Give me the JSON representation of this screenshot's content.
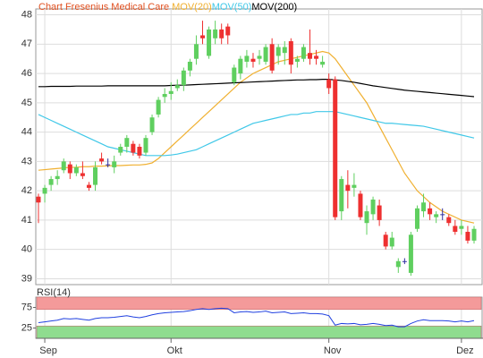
{
  "chart_data": [
    {
      "type": "candlestick",
      "title": "Chart Fresenius Medical Care",
      "title_color": "#e05020",
      "categories": [
        null,
        "Sep",
        null,
        null,
        null,
        null,
        null,
        null,
        null,
        null,
        null,
        null,
        null,
        null,
        null,
        null,
        null,
        null,
        null,
        null,
        null,
        "Okt",
        null,
        null,
        null,
        null,
        null,
        null,
        null,
        null,
        null,
        null,
        null,
        null,
        null,
        null,
        null,
        null,
        null,
        null,
        null,
        null,
        null,
        null,
        null,
        null,
        "Nov",
        null,
        null,
        null,
        null,
        null,
        null,
        null,
        null,
        null,
        null,
        null,
        null,
        null,
        null,
        null,
        null,
        null,
        null,
        null,
        null,
        "Dez",
        null,
        null
      ],
      "open": [
        41.8,
        41.9,
        42.2,
        42.4,
        42.7,
        42.9,
        42.6,
        42.6,
        42.2,
        42.2,
        43.1,
        42.9,
        42.8,
        43.3,
        43.5,
        43.6,
        43.5,
        43.3,
        44.0,
        44.6,
        45.2,
        45.3,
        45.5,
        45.6,
        46.1,
        46.5,
        47.3,
        46.6,
        47.2,
        47.5,
        47.6,
        45.7,
        46.0,
        46.4,
        46.5,
        46.5,
        46.4,
        47.0,
        46.6,
        46.7,
        47.1,
        46.4,
        46.5,
        46.7,
        46.6,
        46.3,
        45.8,
        45.8,
        41.3,
        42.2,
        42.1,
        41.9,
        40.9,
        41.2,
        41.5,
        40.5,
        40.1,
        39.4,
        39.6,
        39.2,
        40.7,
        41.3,
        41.4,
        41.1,
        41.2,
        41.1,
        40.8,
        40.7,
        40.6,
        40.3
      ],
      "high": [
        41.9,
        42.2,
        42.5,
        42.7,
        43.1,
        43.0,
        42.9,
        43.0,
        42.3,
        43.0,
        43.3,
        43.1,
        43.2,
        43.6,
        43.9,
        43.7,
        43.6,
        43.9,
        44.6,
        45.2,
        45.5,
        45.7,
        45.8,
        46.2,
        46.5,
        47.3,
        47.8,
        47.6,
        47.8,
        47.7,
        47.7,
        46.3,
        46.6,
        46.8,
        46.7,
        46.8,
        47.0,
        47.2,
        47.0,
        47.1,
        47.2,
        46.6,
        47.0,
        47.5,
        46.8,
        46.6,
        46.0,
        45.9,
        42.5,
        42.7,
        42.6,
        42.0,
        41.5,
        41.8,
        41.7,
        40.6,
        40.6,
        39.7,
        39.7,
        40.6,
        41.5,
        41.9,
        41.6,
        41.3,
        41.4,
        41.2,
        41.0,
        41.0,
        40.8,
        40.8
      ],
      "low": [
        40.9,
        41.6,
        42.0,
        42.2,
        42.6,
        42.4,
        42.5,
        42.4,
        42.0,
        42.0,
        42.9,
        42.8,
        42.6,
        43.2,
        43.3,
        43.2,
        43.1,
        43.2,
        43.9,
        44.5,
        45.0,
        45.1,
        45.4,
        45.4,
        45.9,
        46.3,
        47.0,
        46.5,
        47.0,
        47.0,
        47.0,
        45.6,
        45.8,
        46.2,
        46.2,
        46.3,
        46.3,
        46.0,
        46.3,
        46.3,
        46.0,
        46.2,
        46.4,
        46.3,
        46.3,
        46.2,
        45.3,
        41.0,
        41.0,
        41.4,
        41.8,
        41.0,
        40.5,
        41.0,
        40.8,
        40.0,
        40.0,
        39.2,
        39.5,
        39.1,
        40.6,
        41.1,
        41.0,
        40.9,
        41.0,
        40.8,
        40.5,
        40.5,
        40.2,
        40.2
      ],
      "close": [
        41.6,
        42.1,
        42.4,
        42.5,
        43.0,
        42.6,
        42.8,
        42.5,
        42.1,
        42.8,
        43.0,
        42.9,
        43.0,
        43.5,
        43.8,
        43.3,
        43.2,
        43.8,
        44.5,
        45.1,
        45.3,
        45.4,
        45.6,
        46.1,
        46.4,
        47.0,
        47.2,
        47.5,
        47.5,
        47.2,
        47.3,
        46.2,
        46.5,
        46.6,
        46.4,
        46.6,
        46.9,
        46.1,
        46.9,
        46.9,
        46.3,
        46.5,
        46.9,
        46.5,
        46.5,
        46.4,
        45.5,
        41.1,
        42.4,
        42.0,
        42.2,
        41.1,
        41.3,
        41.7,
        41.0,
        40.1,
        40.4,
        39.6,
        39.6,
        40.5,
        41.4,
        41.6,
        41.2,
        41.2,
        41.2,
        40.9,
        40.6,
        40.8,
        40.3,
        40.7
      ],
      "up_color": "#5fcf5f",
      "down_color": "#ee3030",
      "doji_color": "#3030a0",
      "series": [
        {
          "name": "MOV(20)",
          "color": "#f0b030",
          "values": [
            42.7,
            42.72,
            42.74,
            42.76,
            42.78,
            42.8,
            42.8,
            42.82,
            42.82,
            42.84,
            42.84,
            42.85,
            42.86,
            42.86,
            42.87,
            42.88,
            42.88,
            42.9,
            42.95,
            43.1,
            43.3,
            43.5,
            43.7,
            43.9,
            44.1,
            44.3,
            44.5,
            44.7,
            44.9,
            45.1,
            45.3,
            45.5,
            45.7,
            45.85,
            46.0,
            46.1,
            46.2,
            46.3,
            46.4,
            46.45,
            46.5,
            46.55,
            46.6,
            46.65,
            46.7,
            46.75,
            46.7,
            46.5,
            46.2,
            45.9,
            45.6,
            45.3,
            45.0,
            44.6,
            44.2,
            43.8,
            43.4,
            43.0,
            42.6,
            42.3,
            42.0,
            41.8,
            41.6,
            41.45,
            41.3,
            41.2,
            41.1,
            41.0,
            40.95,
            40.9
          ]
        },
        {
          "name": "MOV(50)",
          "color": "#40c8e8",
          "values": [
            44.6,
            44.5,
            44.4,
            44.3,
            44.2,
            44.1,
            44.0,
            43.9,
            43.8,
            43.7,
            43.6,
            43.5,
            43.45,
            43.4,
            43.35,
            43.3,
            43.25,
            43.2,
            43.2,
            43.2,
            43.2,
            43.22,
            43.25,
            43.3,
            43.35,
            43.4,
            43.5,
            43.6,
            43.7,
            43.8,
            43.9,
            44.0,
            44.1,
            44.2,
            44.3,
            44.35,
            44.4,
            44.45,
            44.5,
            44.55,
            44.6,
            44.6,
            44.65,
            44.65,
            44.7,
            44.7,
            44.7,
            44.7,
            44.65,
            44.6,
            44.55,
            44.5,
            44.45,
            44.4,
            44.35,
            44.3,
            44.3,
            44.28,
            44.26,
            44.24,
            44.22,
            44.2,
            44.15,
            44.1,
            44.05,
            44.0,
            43.95,
            43.9,
            43.85,
            43.8
          ]
        },
        {
          "name": "MOV(200)",
          "color": "#000000",
          "values": [
            45.55,
            45.55,
            45.56,
            45.56,
            45.56,
            45.56,
            45.57,
            45.57,
            45.57,
            45.57,
            45.57,
            45.58,
            45.58,
            45.58,
            45.58,
            45.58,
            45.58,
            45.58,
            45.58,
            45.58,
            45.58,
            45.59,
            45.6,
            45.6,
            45.61,
            45.62,
            45.63,
            45.64,
            45.65,
            45.66,
            45.67,
            45.68,
            45.69,
            45.7,
            45.71,
            45.72,
            45.73,
            45.74,
            45.75,
            45.76,
            45.77,
            45.78,
            45.78,
            45.79,
            45.79,
            45.8,
            45.8,
            45.78,
            45.76,
            45.73,
            45.7,
            45.66,
            45.62,
            45.58,
            45.55,
            45.52,
            45.49,
            45.46,
            45.43,
            45.41,
            45.39,
            45.37,
            45.35,
            45.33,
            45.31,
            45.29,
            45.27,
            45.25,
            45.23,
            45.21
          ]
        }
      ],
      "ylim": [
        38.8,
        48.2
      ],
      "yticks": [
        39,
        40,
        41,
        42,
        43,
        44,
        45,
        46,
        47,
        48
      ],
      "grid": true
    },
    {
      "type": "line",
      "series": [
        {
          "name": "RSI(14)",
          "color": "#2040e0",
          "values": [
            38,
            40,
            42,
            44,
            48,
            47,
            48,
            46,
            44,
            48,
            50,
            50,
            51,
            53,
            55,
            52,
            50,
            53,
            57,
            60,
            62,
            63,
            64,
            65,
            67,
            70,
            72,
            70,
            72,
            73,
            72,
            62,
            64,
            65,
            63,
            64,
            66,
            62,
            63,
            64,
            60,
            61,
            62,
            60,
            60,
            59,
            55,
            32,
            36,
            35,
            36,
            33,
            34,
            36,
            34,
            31,
            32,
            28,
            28,
            36,
            42,
            45,
            43,
            43,
            43,
            42,
            40,
            42,
            40,
            43
          ]
        }
      ],
      "ylim": [
        0,
        100
      ],
      "yticks": [
        25,
        75
      ],
      "bands": [
        {
          "from": 70,
          "to": 100,
          "color": "#f49a9a"
        },
        {
          "from": 0,
          "to": 30,
          "color": "#8fdc8f"
        }
      ]
    }
  ]
}
